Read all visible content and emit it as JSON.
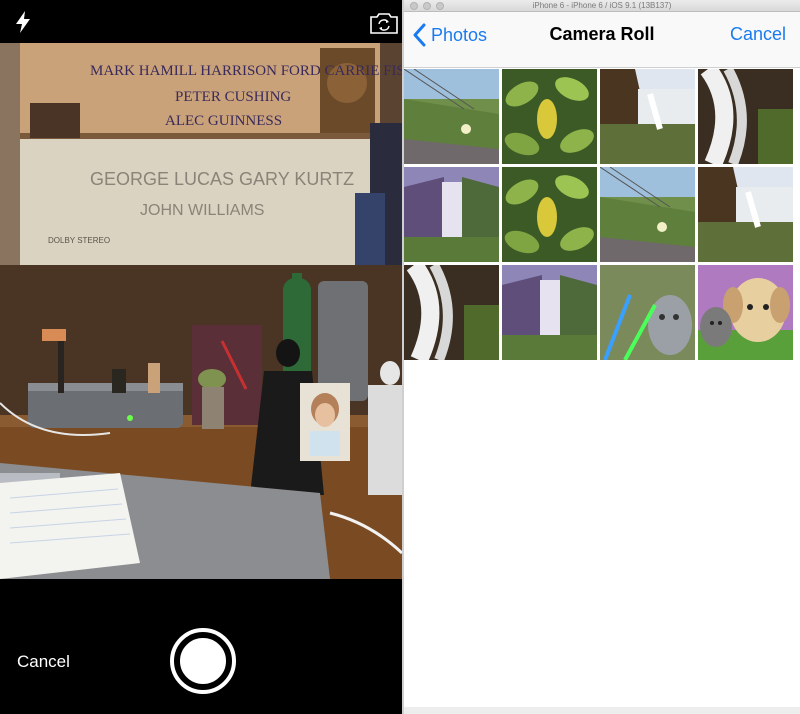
{
  "camera": {
    "cancel_label": "Cancel",
    "poster": {
      "cast_line1": "MARK HAMILL  HARRISON FORD  CARRIE FISHER",
      "cast_line2": "PETER CUSHING",
      "cast_line3": "ALEC GUINNESS",
      "producers": "GEORGE LUCAS  GARY KURTZ",
      "composer": "JOHN WILLIAMS",
      "dolby": "DOLBY STEREO"
    },
    "icons": {
      "flash": "lightning-bolt-icon",
      "switch": "camera-switch-icon",
      "shutter": "shutter-button"
    }
  },
  "simulator": {
    "window_title": "iPhone 6 - iPhone 6 / iOS 9.1 (13B137)",
    "back_label": "Photos",
    "title": "Camera Roll",
    "cancel_label": "Cancel",
    "accent_color": "#1a7bf0",
    "photos": [
      "coastal-flowers",
      "green-leaves",
      "waterfall-cliff",
      "cascading-waterfall",
      "purple-waterfall",
      "green-leaves",
      "coastal-flowers",
      "waterfall-cliff",
      "cascading-waterfall",
      "purple-waterfall",
      "kitten-lightsabers",
      "kitten-puppy"
    ]
  }
}
